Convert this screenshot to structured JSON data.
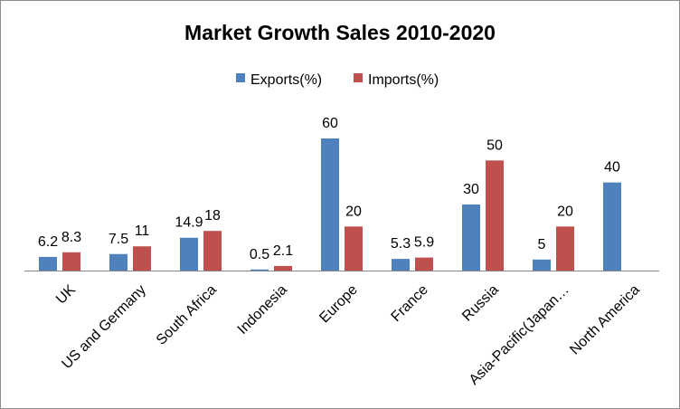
{
  "chart_data": {
    "type": "bar",
    "title": "Market Growth Sales 2010-2020",
    "categories": [
      "UK",
      "US and Germany",
      "South Africa",
      "Indonesia",
      "Europe",
      "France",
      "Russia",
      "Asia-Pacific(Japan…",
      "North America"
    ],
    "series": [
      {
        "name": "Exports(%)",
        "color": "#4f81bd",
        "values": [
          6.2,
          7.5,
          14.9,
          0.5,
          60,
          5.3,
          30,
          5,
          40
        ],
        "labels": [
          "6.2",
          "7.5",
          "14.9",
          "0.5",
          "60",
          "5.3",
          "30",
          "5",
          "40"
        ]
      },
      {
        "name": "Imports(%)",
        "color": "#c0504d",
        "values": [
          8.3,
          11,
          18,
          2.1,
          20,
          5.9,
          50,
          20,
          null
        ],
        "labels": [
          "8.3",
          "11",
          "18",
          "2.1",
          "20",
          "5.9",
          "50",
          "20",
          ""
        ]
      }
    ],
    "xlabel": "",
    "ylabel": "",
    "ylim": [
      0,
      60
    ],
    "grid": false,
    "legend_position": "top"
  }
}
